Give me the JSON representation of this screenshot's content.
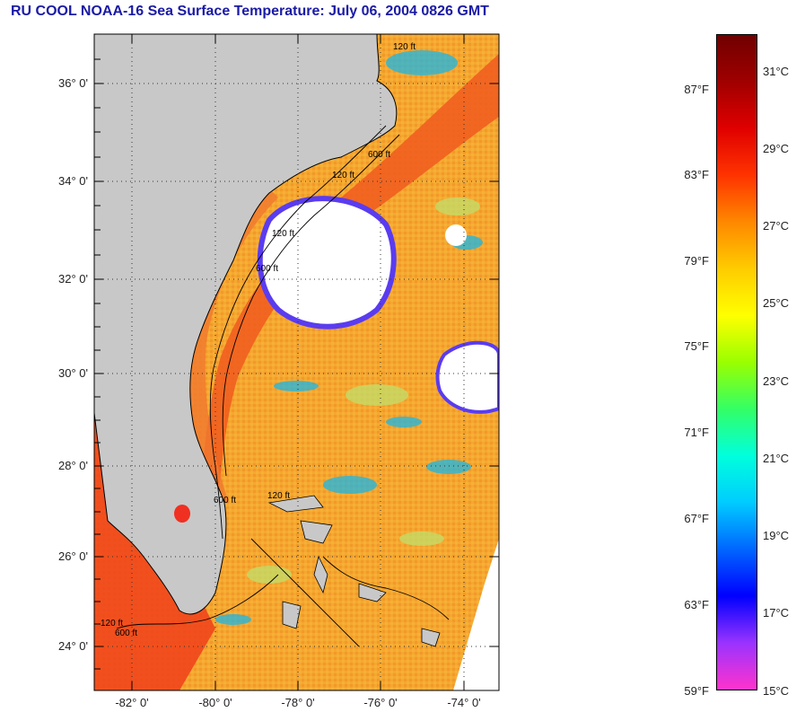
{
  "title": "RU COOL  NOAA-16  Sea Surface Temperature:  July 06, 2004 0826 GMT",
  "colors": {
    "land": "#c8c8c8",
    "cloud": "#ffffff",
    "gulf_stream": "#f05a1e",
    "shelf_water": "#f59a28",
    "offshore": "#f5a830",
    "cold_patch": "#1ab7e6",
    "frame": "#000000"
  },
  "map": {
    "lat_labels": [
      "36° 0'",
      "34° 0'",
      "32° 0'",
      "30° 0'",
      "28° 0'",
      "26° 0'",
      "24° 0'"
    ],
    "lon_labels": [
      "-82° 0'",
      "-80° 0'",
      "-78° 0'",
      "-76° 0'",
      "-74° 0'"
    ],
    "isobath_labels": [
      "120 ft",
      "120 ft",
      "600 ft",
      "120 ft",
      "600 ft",
      "120 ft",
      "600 ft",
      "120 ft",
      "600 ft"
    ]
  },
  "colorbar": {
    "fahrenheit_labels": [
      "87°F",
      "83°F",
      "79°F",
      "75°F",
      "71°F",
      "67°F",
      "63°F",
      "59°F"
    ],
    "celsius_labels": [
      "31°C",
      "29°C",
      "27°C",
      "25°C",
      "23°C",
      "21°C",
      "19°C",
      "17°C",
      "15°C"
    ],
    "gradient_stops": [
      "#ff33cc",
      "#9933ff",
      "#0000ff",
      "#0066ff",
      "#00ccff",
      "#00ffdd",
      "#33ff66",
      "#99ff00",
      "#ffff00",
      "#ffcc00",
      "#ff8800",
      "#ff3300",
      "#e00000",
      "#a00000",
      "#700000"
    ]
  }
}
